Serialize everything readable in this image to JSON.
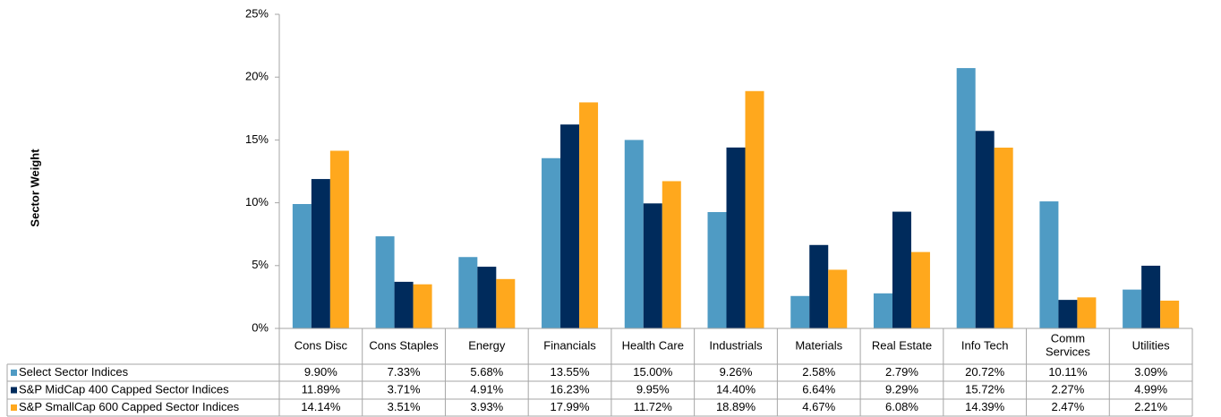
{
  "chart_data": {
    "type": "bar",
    "y_axis_label": "Sector Weight",
    "categories": [
      "Cons Disc",
      "Cons Staples",
      "Energy",
      "Financials",
      "Health Care",
      "Industrials",
      "Materials",
      "Real Estate",
      "Info Tech",
      "Comm Services",
      "Utilities"
    ],
    "series": [
      {
        "name": "Select Sector Indices",
        "color": "#4f9bc4",
        "values": [
          9.9,
          7.33,
          5.68,
          13.55,
          15.0,
          9.26,
          2.58,
          2.79,
          20.72,
          10.11,
          3.09
        ],
        "value_labels": [
          "9.90%",
          "7.33%",
          "5.68%",
          "13.55%",
          "15.00%",
          "9.26%",
          "2.58%",
          "2.79%",
          "20.72%",
          "10.11%",
          "3.09%"
        ]
      },
      {
        "name": "S&P MidCap 400 Capped Sector Indices",
        "color": "#002b5c",
        "values": [
          11.89,
          3.71,
          4.91,
          16.23,
          9.95,
          14.4,
          6.64,
          9.29,
          15.72,
          2.27,
          4.99
        ],
        "value_labels": [
          "11.89%",
          "3.71%",
          "4.91%",
          "16.23%",
          "9.95%",
          "14.40%",
          "6.64%",
          "9.29%",
          "15.72%",
          "2.27%",
          "4.99%"
        ]
      },
      {
        "name": "S&P SmallCap 600 Capped Sector Indices",
        "color": "#ffa81d",
        "values": [
          14.14,
          3.51,
          3.93,
          17.99,
          11.72,
          18.89,
          4.67,
          6.08,
          14.39,
          2.47,
          2.21
        ],
        "value_labels": [
          "14.14%",
          "3.51%",
          "3.93%",
          "17.99%",
          "11.72%",
          "18.89%",
          "4.67%",
          "6.08%",
          "14.39%",
          "2.47%",
          "2.21%"
        ]
      }
    ],
    "ylim": [
      0,
      25
    ],
    "yticks": [
      {
        "value": 0,
        "label": "0%"
      },
      {
        "value": 5,
        "label": "5%"
      },
      {
        "value": 10,
        "label": "10%"
      },
      {
        "value": 15,
        "label": "15%"
      },
      {
        "value": 20,
        "label": "20%"
      },
      {
        "value": 25,
        "label": "25%"
      }
    ]
  }
}
